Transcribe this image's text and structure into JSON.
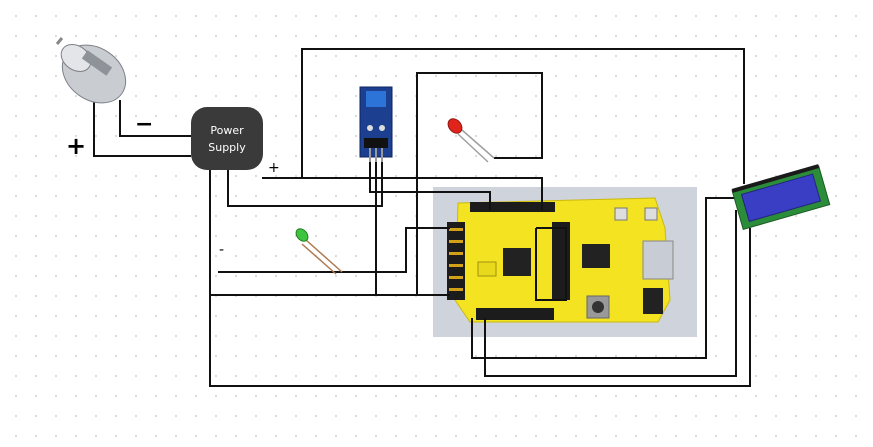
{
  "components": {
    "motor": {
      "icon": "dc-motor-icon"
    },
    "power_supply": {
      "line1": "Power",
      "line2": "Supply"
    },
    "sensor_module": {
      "icon": "sensor-module-icon"
    },
    "red_led": {
      "icon": "led-icon",
      "color": "#e0241b"
    },
    "green_led": {
      "icon": "led-icon",
      "color": "#3fc43f"
    },
    "board": {
      "icon": "microcontroller-board-icon",
      "color": "#f4e321"
    },
    "lcd": {
      "icon": "lcd-display-icon",
      "color": "#3a3ec4"
    }
  },
  "labels": {
    "motor_plus": "+",
    "motor_minus": "−",
    "psu_plus": "+",
    "psu_minus": "-"
  },
  "colors": {
    "wire": "#111111",
    "board_bg": "#cfd3db"
  }
}
